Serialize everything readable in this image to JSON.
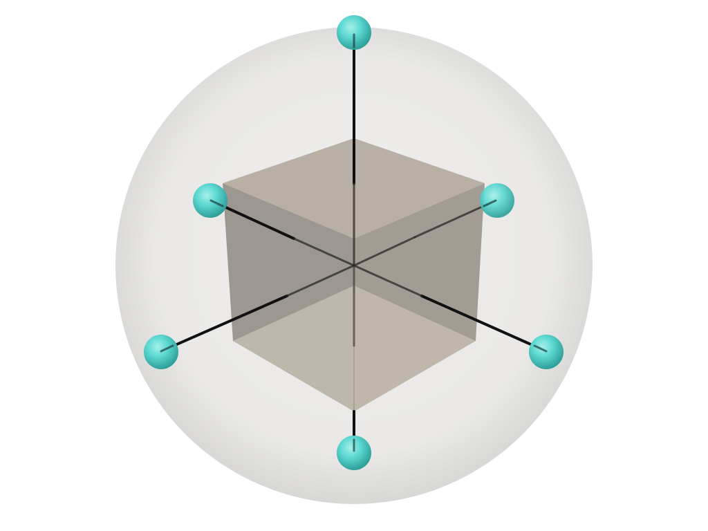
{
  "scene": {
    "background_color": "#ffffff",
    "enclosing_sphere": {
      "color": "#e8e7e5",
      "rim_color": "#d9d8d6"
    },
    "cube": {
      "faces": {
        "top": "#b8b0a4",
        "left": "#9c9790",
        "right": "#a29c94",
        "inner_top": "#c4bcb0"
      }
    },
    "axis_color": "#111111",
    "marker_sphere_color": "#56d6d0",
    "marker_sphere_highlight": "#8fe9e3",
    "marker_sphere_shadow": "#2a9a96",
    "markers": [
      {
        "name": "top"
      },
      {
        "name": "bottom"
      },
      {
        "name": "upper-left"
      },
      {
        "name": "upper-right"
      },
      {
        "name": "lower-left"
      },
      {
        "name": "lower-right"
      }
    ]
  }
}
